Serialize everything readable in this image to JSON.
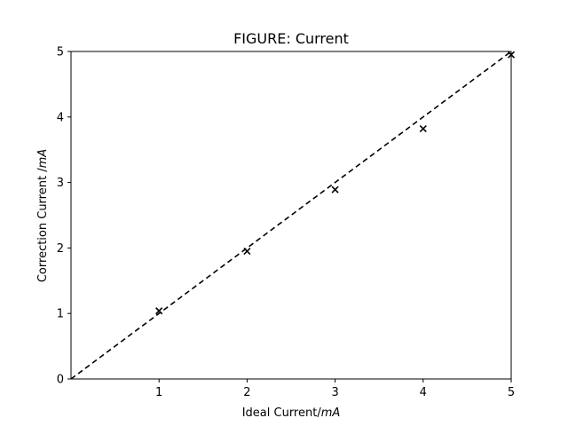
{
  "chart_data": {
    "type": "scatter",
    "title": "FIGURE: Current",
    "xlabel_main": "Ideal Current/",
    "xlabel_unit": "mA",
    "ylabel_main": "Correction Current /",
    "ylabel_unit": "mA",
    "xlim": [
      0,
      5
    ],
    "ylim": [
      0,
      5
    ],
    "x_ticks": [
      "1",
      "2",
      "3",
      "4",
      "5"
    ],
    "y_ticks": [
      "0",
      "1",
      "2",
      "3",
      "4",
      "5"
    ],
    "grid": false,
    "series": [
      {
        "marker": "x",
        "color": "#000000",
        "x": [
          1,
          2,
          3,
          4,
          5
        ],
        "y": [
          1.04,
          1.95,
          2.89,
          3.82,
          4.95
        ]
      }
    ],
    "reference_line": {
      "style": "dashed",
      "color": "#000000",
      "x": [
        0,
        5
      ],
      "y": [
        0,
        5
      ]
    }
  }
}
